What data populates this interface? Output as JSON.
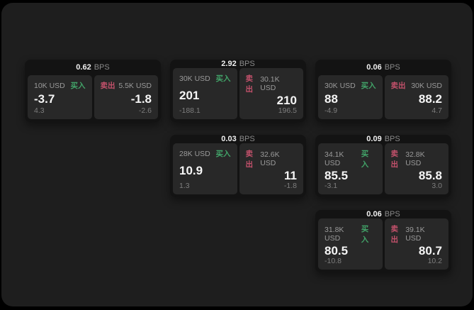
{
  "colors": {
    "outer_bg": "#000000",
    "panel_bg": "#1e1e1e",
    "card_bg": "#131313",
    "tile_bg": "#282828",
    "text_primary": "#f5f5f5",
    "text_muted": "#8a8a8a",
    "buy_green": "#42a469",
    "sell_red": "#c3516b"
  },
  "labels": {
    "bps_suffix": "BPS",
    "buy": "买入",
    "sell": "卖出"
  },
  "cards": [
    {
      "bps": "0.62",
      "buy": {
        "size": "10K USD",
        "value": "-3.7",
        "delta": "4.3"
      },
      "sell": {
        "size": "5.5K USD",
        "value": "-1.8",
        "delta": "-2.6"
      }
    },
    {
      "bps": "2.92",
      "buy": {
        "size": "30K USD",
        "value": "201",
        "delta": "-188.1"
      },
      "sell": {
        "size": "30.1K USD",
        "value": "210",
        "delta": "196.5"
      }
    },
    {
      "bps": "0.06",
      "buy": {
        "size": "30K USD",
        "value": "88",
        "delta": "-4.9"
      },
      "sell": {
        "size": "30K USD",
        "value": "88.2",
        "delta": "4.7"
      }
    },
    {
      "bps": "0.03",
      "buy": {
        "size": "28K USD",
        "value": "10.9",
        "delta": "1.3"
      },
      "sell": {
        "size": "32.6K USD",
        "value": "11",
        "delta": "-1.8"
      }
    },
    {
      "bps": "0.09",
      "buy": {
        "size": "34.1K USD",
        "value": "85.5",
        "delta": "-3.1"
      },
      "sell": {
        "size": "32.8K USD",
        "value": "85.8",
        "delta": "3.0"
      }
    },
    {
      "bps": "0.06",
      "buy": {
        "size": "31.8K USD",
        "value": "80.5",
        "delta": "-10.8"
      },
      "sell": {
        "size": "39.1K USD",
        "value": "80.7",
        "delta": "10.2"
      }
    }
  ]
}
